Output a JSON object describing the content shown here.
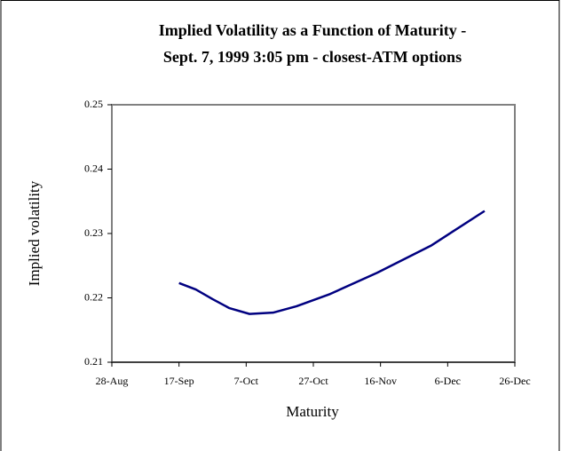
{
  "chart_data": {
    "type": "line",
    "title": [
      "Implied Volatility as a Function of Maturity -",
      "Sept. 7, 1999 3:05 pm - closest-ATM options"
    ],
    "x_label": "Maturity",
    "y_label": "Implied volatility",
    "x": [
      "17-Sep",
      "22-Sep",
      "27-Sep",
      "2-Oct",
      "8-Oct",
      "15-Oct",
      "22-Oct",
      "1-Nov",
      "15-Nov",
      "1-Dec",
      "17-Dec"
    ],
    "series": [
      {
        "name": "Implied volatility",
        "color": "#000080",
        "values": [
          0.2223,
          0.2213,
          0.2198,
          0.2184,
          0.2175,
          0.2177,
          0.2187,
          0.2206,
          0.2239,
          0.2281,
          0.2335
        ]
      }
    ],
    "xlim": [
      "28-Aug",
      "26-Dec"
    ],
    "xticks": [
      "28-Aug",
      "17-Sep",
      "7-Oct",
      "27-Oct",
      "16-Nov",
      "6-Dec",
      "26-Dec"
    ],
    "ylim": [
      0.21,
      0.25
    ],
    "yticks": [
      0.21,
      0.22,
      0.23,
      0.24,
      0.25
    ]
  }
}
